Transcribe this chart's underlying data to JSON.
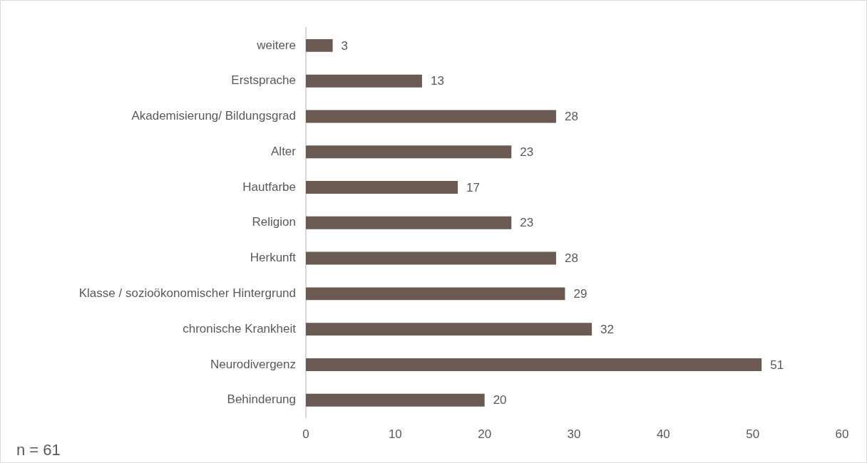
{
  "chart_data": {
    "type": "bar",
    "orientation": "horizontal",
    "categories": [
      "weitere",
      "Erstsprache",
      "Akademisierung/ Bildungsgrad",
      "Alter",
      "Hautfarbe",
      "Religion",
      "Herkunft",
      "Klasse / sozioökonomischer Hintergrund",
      "chronische Krankheit",
      "Neurodivergenz",
      "Behinderung"
    ],
    "values": [
      3,
      13,
      28,
      23,
      17,
      23,
      28,
      29,
      32,
      51,
      20
    ],
    "color": "#6b5a52",
    "xlim": [
      0,
      60
    ],
    "xticks": [
      0,
      10,
      20,
      30,
      40,
      50,
      60
    ],
    "data_labels": true,
    "grid": false,
    "legend": false,
    "annotations": [
      "n = 61"
    ]
  }
}
